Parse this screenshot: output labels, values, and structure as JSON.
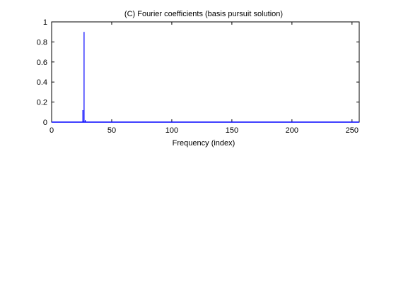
{
  "chart_data": {
    "type": "bar",
    "title": "(C) Fourier coefficients (basis pursuit solution)",
    "xlabel": "Frequency (index)",
    "ylabel": "",
    "xlim": [
      0,
      256
    ],
    "ylim": [
      0,
      1
    ],
    "xticks": [
      0,
      50,
      100,
      150,
      200,
      250
    ],
    "yticks": [
      0,
      0.2,
      0.4,
      0.6,
      0.8,
      1
    ],
    "ytick_labels": [
      "0",
      "0.2",
      "0.4",
      "0.6",
      "0.8",
      "1"
    ],
    "grid": false,
    "legend": "none",
    "series": [
      {
        "color": "#0000ff",
        "points": [
          {
            "x": 26,
            "y": 0.12
          },
          {
            "x": 27,
            "y": 0.9
          },
          {
            "x": 28,
            "y": 0.02
          }
        ],
        "baseline": 0
      }
    ]
  }
}
